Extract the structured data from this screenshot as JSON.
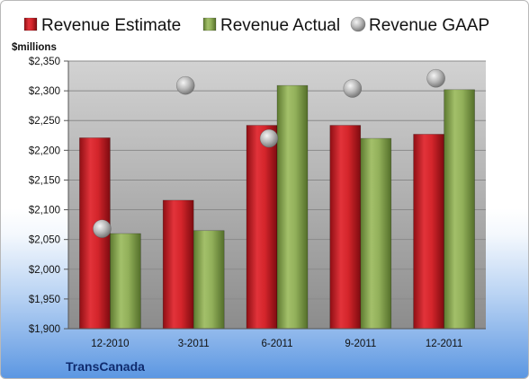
{
  "chart_data": {
    "type": "bar",
    "ylabel": "$millions",
    "company": "TransCanada",
    "categories": [
      "12-2010",
      "3-2011",
      "6-2011",
      "9-2011",
      "12-2011"
    ],
    "ylim": [
      1900,
      2350
    ],
    "yticks": [
      1900,
      1950,
      2000,
      2050,
      2100,
      2150,
      2200,
      2250,
      2300,
      2350
    ],
    "ytick_labels": [
      "$1,900",
      "$1,950",
      "$2,000",
      "$2,050",
      "$2,100",
      "$2,150",
      "$2,200",
      "$2,250",
      "$2,300",
      "$2,350"
    ],
    "grid": true,
    "legend": "top",
    "series": [
      {
        "name": "Revenue Estimate",
        "kind": "bar",
        "color": "#d4252b",
        "values": [
          2221,
          2116,
          2242,
          2242,
          2227
        ]
      },
      {
        "name": "Revenue Actual",
        "kind": "bar",
        "color": "#92b05a",
        "values": [
          2060,
          2065,
          2309,
          2220,
          2302
        ]
      },
      {
        "name": "Revenue GAAP",
        "kind": "marker",
        "color": "#b8b8b8",
        "values": [
          2068,
          2309,
          2220,
          2304,
          2321
        ]
      }
    ]
  }
}
